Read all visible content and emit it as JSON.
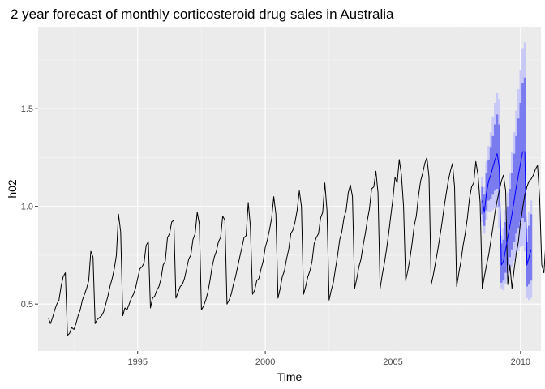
{
  "chart_data": {
    "type": "line",
    "title": "2 year forecast of monthly corticosteroid drug sales in Australia",
    "xlabel": "Time",
    "ylabel": "h02",
    "xlim": [
      1991.1,
      2010.8
    ],
    "ylim": [
      0.26,
      1.92
    ],
    "x_ticks": [
      1995,
      2000,
      2005,
      2010
    ],
    "x_tick_labels": [
      "1995",
      "2000",
      "2005",
      "2010"
    ],
    "y_ticks": [
      0.5,
      1.0,
      1.5
    ],
    "y_tick_labels": [
      "0.5",
      "1.0",
      "1.5"
    ],
    "grid": true,
    "legend": "none",
    "history": {
      "start": [
        1991,
        7
      ],
      "frequency": 12,
      "values": [
        0.43,
        0.4,
        0.43,
        0.47,
        0.5,
        0.52,
        0.59,
        0.64,
        0.66,
        0.34,
        0.35,
        0.38,
        0.37,
        0.4,
        0.44,
        0.47,
        0.52,
        0.55,
        0.58,
        0.62,
        0.77,
        0.74,
        0.4,
        0.42,
        0.43,
        0.44,
        0.46,
        0.5,
        0.54,
        0.59,
        0.63,
        0.68,
        0.75,
        0.96,
        0.87,
        0.44,
        0.48,
        0.47,
        0.5,
        0.53,
        0.55,
        0.58,
        0.63,
        0.68,
        0.69,
        0.71,
        0.8,
        0.82,
        0.48,
        0.53,
        0.54,
        0.57,
        0.59,
        0.63,
        0.7,
        0.72,
        0.84,
        0.86,
        0.92,
        0.93,
        0.53,
        0.56,
        0.59,
        0.6,
        0.63,
        0.68,
        0.73,
        0.75,
        0.83,
        0.86,
        0.97,
        0.91,
        0.47,
        0.49,
        0.52,
        0.56,
        0.62,
        0.69,
        0.74,
        0.77,
        0.82,
        0.84,
        0.95,
        0.93,
        0.5,
        0.52,
        0.55,
        0.6,
        0.64,
        0.69,
        0.74,
        0.79,
        0.84,
        0.85,
        1.02,
        0.9,
        0.55,
        0.57,
        0.62,
        0.63,
        0.68,
        0.72,
        0.79,
        0.83,
        0.88,
        0.94,
        1.05,
        0.96,
        0.53,
        0.58,
        0.64,
        0.67,
        0.73,
        0.78,
        0.86,
        0.88,
        0.92,
        0.98,
        1.08,
        1.0,
        0.55,
        0.59,
        0.64,
        0.67,
        0.72,
        0.81,
        0.84,
        0.86,
        0.94,
        0.97,
        1.12,
        0.98,
        0.52,
        0.57,
        0.61,
        0.68,
        0.75,
        0.83,
        0.87,
        0.94,
        0.98,
        1.07,
        1.11,
        1.05,
        0.58,
        0.63,
        0.69,
        0.73,
        0.8,
        0.86,
        0.93,
        0.99,
        1.09,
        1.1,
        1.18,
        1.07,
        0.58,
        0.65,
        0.71,
        0.78,
        0.86,
        0.95,
        1.04,
        1.15,
        1.12,
        1.24,
        1.16,
        1.0,
        0.62,
        0.67,
        0.73,
        0.81,
        0.9,
        0.95,
        1.05,
        1.13,
        1.17,
        1.22,
        1.25,
        1.15,
        0.6,
        0.65,
        0.71,
        0.77,
        0.84,
        0.91,
        0.99,
        1.06,
        1.13,
        1.18,
        1.22,
        1.1,
        0.59,
        0.66,
        0.72,
        0.8,
        0.86,
        0.94,
        1.04,
        1.1,
        1.12,
        1.23,
        1.16,
        1.02,
        0.58,
        0.64,
        0.7,
        0.75,
        0.82,
        0.89,
        0.97,
        1.03,
        1.08,
        1.13,
        1.16,
        1.08,
        0.6,
        0.7,
        0.58,
        0.68,
        0.76,
        0.82,
        0.92,
        0.99,
        1.06,
        1.1,
        1.13,
        1.14,
        1.16,
        1.19,
        1.21,
        1.04,
        0.7,
        0.66,
        0.83,
        0.82,
        0.8,
        0.77
      ]
    },
    "forecast": {
      "start": [
        2008,
        7
      ],
      "frequency": 12,
      "point": [
        1.03,
        0.97,
        1.07,
        1.13,
        1.16,
        1.2,
        1.24,
        1.27,
        1.2,
        0.7,
        0.72,
        0.78,
        0.84,
        0.9,
        0.96,
        1.03,
        1.1,
        1.16,
        1.22,
        1.28,
        1.28,
        0.7,
        0.74,
        0.78
      ],
      "lo80": [
        0.96,
        0.9,
        0.98,
        1.03,
        1.04,
        1.06,
        1.08,
        1.09,
        1.0,
        0.61,
        0.62,
        0.66,
        0.7,
        0.74,
        0.78,
        0.82,
        0.86,
        0.89,
        0.92,
        0.94,
        0.92,
        0.59,
        0.6,
        0.62
      ],
      "hi80": [
        1.1,
        1.06,
        1.17,
        1.24,
        1.3,
        1.36,
        1.42,
        1.47,
        1.42,
        0.81,
        0.83,
        0.92,
        1.0,
        1.09,
        1.17,
        1.27,
        1.36,
        1.45,
        1.53,
        1.63,
        1.66,
        0.82,
        0.9,
        0.96
      ],
      "lo95": [
        0.92,
        0.86,
        0.93,
        0.97,
        0.97,
        0.98,
        0.99,
        0.99,
        0.89,
        0.58,
        0.57,
        0.6,
        0.63,
        0.66,
        0.69,
        0.72,
        0.75,
        0.77,
        0.79,
        0.8,
        0.77,
        0.53,
        0.52,
        0.53
      ],
      "hi95": [
        1.15,
        1.1,
        1.23,
        1.31,
        1.38,
        1.46,
        1.53,
        1.58,
        1.55,
        0.85,
        0.89,
        0.98,
        1.07,
        1.17,
        1.28,
        1.38,
        1.49,
        1.6,
        1.7,
        1.81,
        1.84,
        0.89,
        0.97,
        1.03
      ]
    },
    "colors": {
      "panel": "#ebebeb",
      "grid_major": "#ffffff",
      "history_line": "#000000",
      "forecast_line": "#0000ff",
      "pi80": "#7b7bf0",
      "pi95": "#c9c9f8"
    }
  }
}
